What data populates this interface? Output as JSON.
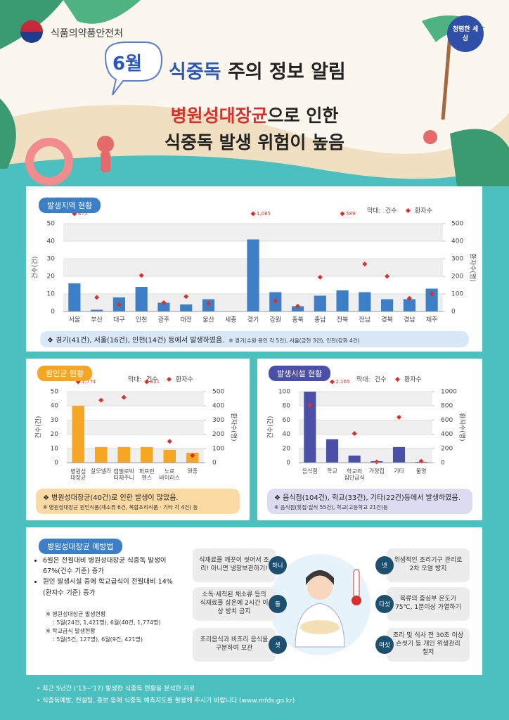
{
  "header": {
    "agency": "식품의약품안전처",
    "badge": "청렴한 세상",
    "month": "6월",
    "title_highlight": "식중독",
    "title_rest": "주의 정보 알림",
    "subtitle_highlight": "병원성대장균",
    "subtitle_rest": "으로 인한",
    "subtitle_line2": "식중독 발생 위험이 높음"
  },
  "chart_data": [
    {
      "type": "bar",
      "title": "발생지역 현황",
      "legend_prefix": "막대:",
      "categories": [
        "서울",
        "부산",
        "대구",
        "인천",
        "광주",
        "대전",
        "울산",
        "세종",
        "경기",
        "강원",
        "충북",
        "충남",
        "전북",
        "전남",
        "경북",
        "경남",
        "제주"
      ],
      "series": [
        {
          "name": "건수",
          "color": "#3d7fc6",
          "values": [
            16,
            1,
            8,
            14,
            5,
            4,
            7,
            0,
            41,
            11,
            3,
            9,
            12,
            11,
            7,
            7,
            13
          ]
        },
        {
          "name": "환자수",
          "type": "scatter",
          "axis": "y2",
          "color": "#d9302b",
          "values": [
            875,
            80,
            40,
            205,
            50,
            85,
            45,
            null,
            1085,
            60,
            30,
            195,
            589,
            270,
            200,
            75,
            100
          ],
          "value_labels": [
            "875",
            null,
            null,
            null,
            null,
            null,
            null,
            null,
            "1,085",
            null,
            null,
            null,
            "589",
            null,
            null,
            null,
            null
          ]
        }
      ],
      "ylim": [
        0,
        50
      ],
      "yticks": [
        0,
        10,
        20,
        30,
        40,
        50
      ],
      "y2lim": [
        0,
        500
      ],
      "y2ticks": [
        0,
        100,
        200,
        300,
        400,
        500
      ],
      "ylabel": "건수(건)",
      "y2label": "환자수(명)",
      "grid": true,
      "note": "❖ 경기(41건), 서울(16건), 인천(14건) 등에서 발생하였음.",
      "subnote": "※ 경기(수원·용인 각 5건), 서울(금천 3건), 인천(강화 4건)"
    },
    {
      "type": "bar",
      "title": "원인균 현황",
      "legend_prefix": "막대:",
      "categories": [
        "병원성\n대장균",
        "살모넬라",
        "캠필로박\n터제주니",
        "퍼프린\n젠스",
        "노로\n바이러스",
        "원충"
      ],
      "series": [
        {
          "name": "건수",
          "color": "#f5a623",
          "values": [
            40,
            11,
            11,
            11,
            9,
            7
          ]
        },
        {
          "name": "환자수",
          "type": "scatter",
          "axis": "y2",
          "color": "#d9302b",
          "values": [
            1774,
            440,
            460,
            611,
            150,
            50
          ],
          "value_labels": [
            "1,774",
            null,
            null,
            "611",
            null,
            null
          ]
        }
      ],
      "ylim": [
        0,
        50
      ],
      "yticks": [
        0,
        10,
        20,
        30,
        40,
        50
      ],
      "y2lim": [
        0,
        500
      ],
      "y2ticks": [
        0,
        100,
        200,
        300,
        400,
        500
      ],
      "ylabel": "건수(건)",
      "y2label": "환자수(명)",
      "grid": true,
      "note": "❖ 병원성대장균(40건)로 인한 발생이 많았음.",
      "subnote": "※ 병원성대장균 원인식품(채소류 6건, 복합조리식품 · 기타 각 4건) 등"
    },
    {
      "type": "bar",
      "title": "발생시설 현황",
      "legend_prefix": "막대:",
      "categories": [
        "음식점",
        "학교",
        "학교외\n집단급식",
        "가정집",
        "기타",
        "불명"
      ],
      "series": [
        {
          "name": "건수",
          "color": "#4b4fa8",
          "values": [
            104,
            33,
            10,
            2,
            22,
            1
          ]
        },
        {
          "name": "환자수",
          "type": "scatter",
          "axis": "y2",
          "color": "#d9302b",
          "values": [
            810,
            2165,
            410,
            10,
            640,
            20
          ],
          "value_labels": [
            null,
            "2,165",
            null,
            null,
            null,
            null
          ]
        }
      ],
      "ylim": [
        0,
        100
      ],
      "yticks": [
        0,
        20,
        40,
        60,
        80,
        100
      ],
      "y2lim": [
        0,
        1000
      ],
      "y2ticks": [
        0,
        200,
        400,
        600,
        800,
        1000
      ],
      "ylabel": "건수(건)",
      "y2label": "환자수(명)",
      "grid": true,
      "note": "❖ 음식점(104건), 학교(33건), 기타(22건)등에서 발생하였음.",
      "subnote": "※ 음식점(횟집·일식 55건), 학교(고등학교 21건)등"
    }
  ],
  "prevention": {
    "title": "병원성대장균 예방법",
    "bullets": [
      "6월은 전월대비 병원성대장균 식중독 발생이 67%(건수 기준) 증가",
      "원인 발생시설 중에 학교급식이 전월대비 14%(환자수 기준) 증가"
    ],
    "notes": [
      "※ 병원성대장균 발생현황",
      ": 5월(24건, 1,421명), 6월(40건, 1,774명)",
      "※ 학교급식 발생현황",
      ": 5월(5건, 127명), 6월(9건, 421명)"
    ],
    "tips": [
      {
        "num": "하나",
        "text": "식재료를 깨끗이 씻어서 조리! 아니면 냉장보관하기!"
      },
      {
        "num": "둘",
        "text": "소독·세척된 채소류 등의 식재료를 상온에 2시간 이상 방치 금지"
      },
      {
        "num": "셋",
        "text": "조리음식과 비조리 음식을 구분하여 보관"
      },
      {
        "num": "넷",
        "text": "위생적인 조리기구 관리로 2차 오염 방지"
      },
      {
        "num": "다섯",
        "text": "육류의 중심부 온도가 75℃, 1분이상 가열하기"
      },
      {
        "num": "여섯",
        "text": "조리 및 식사 전 30초 이상 손씻기 등 개인 위생관리 철저"
      }
    ]
  },
  "footer": [
    "최근 5년간 ('13~'17) 발생한 식중독 현황을 분석한 자료",
    "식중독예방, 컨설팅, 홍보 등에 식중독 예측지도를 활용해 주시기 바랍니다.(www.mfds.go.kr)"
  ]
}
